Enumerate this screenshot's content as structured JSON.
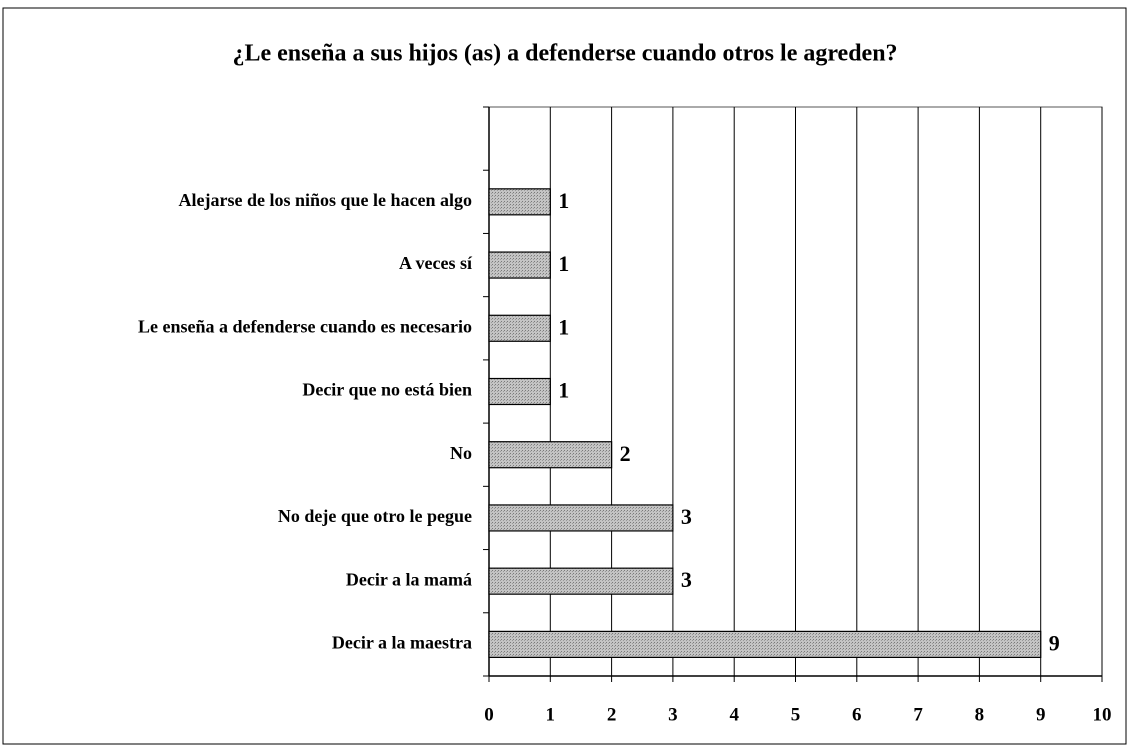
{
  "chart_data": {
    "type": "bar",
    "orientation": "horizontal",
    "title": "¿Le enseña a sus hijos (as) a defenderse cuando otros le agreden?",
    "categories": [
      "Alejarse de los niños que le hacen algo",
      "A veces sí",
      "Le enseña a defenderse cuando es necesario",
      "Decir que no está bien",
      "No",
      "No deje que otro le pegue",
      "Decir a la mamá",
      "Decir a la maestra"
    ],
    "values": [
      1,
      1,
      1,
      1,
      2,
      3,
      3,
      9
    ],
    "color": "#b8b8b8",
    "xlim": [
      0,
      10
    ],
    "xticks": [
      0,
      1,
      2,
      3,
      4,
      5,
      6,
      7,
      8,
      9,
      10
    ],
    "grid": true
  }
}
